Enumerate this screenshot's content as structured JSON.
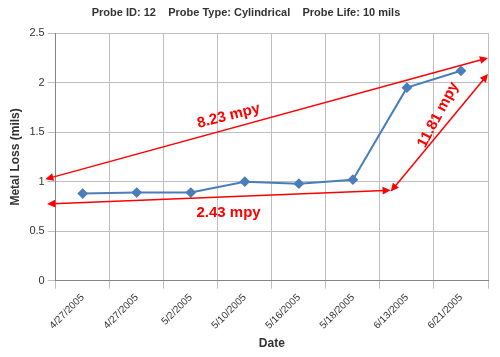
{
  "chart_data": {
    "type": "line",
    "title": "Probe ID: 12    Probe Type: Cylindrical    Probe Life: 10 mils",
    "x_label": "Date",
    "y_label": "Metal Loss (mils)",
    "categories": [
      "4/27/2005",
      "4/27/2005",
      "5/2/2005",
      "5/10/2005",
      "5/16/2005",
      "5/18/2005",
      "6/13/2005",
      "6/21/2005"
    ],
    "values": [
      0.88,
      0.89,
      0.89,
      1.0,
      0.98,
      1.02,
      1.95,
      2.12
    ],
    "color": "#4a7ebb",
    "marker": "diamond",
    "ylim": [
      0,
      2.5
    ],
    "yticks": [
      0,
      0.5,
      1,
      1.5,
      2,
      2.5
    ],
    "grid": true,
    "annotations": [
      {
        "text": "8.23 mpy",
        "color": "#ff0000"
      },
      {
        "text": "2.43 mpy",
        "color": "#ff0000"
      },
      {
        "text": "11.81 mpy",
        "color": "#ff0000"
      }
    ]
  }
}
